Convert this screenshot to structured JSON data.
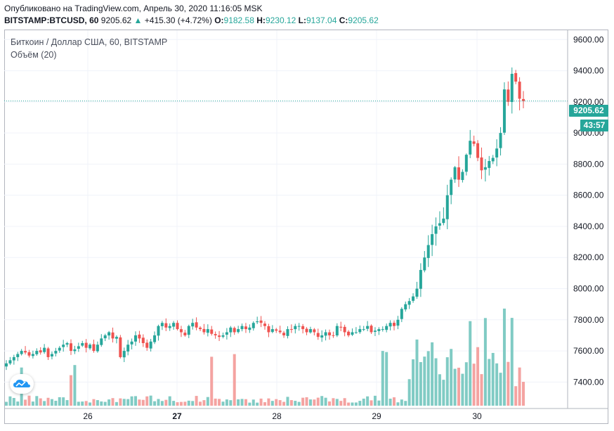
{
  "header": {
    "published": "Опубликовано на TradingView.com, Апрель 30, 2020 11:16:05 MSK",
    "symbol": "BITSTAMP:BTCUSD, 60",
    "last": "9205.62",
    "change": "+415.30 (+4.72%)",
    "o_label": "O:",
    "o_value": "9182.58",
    "h_label": "H:",
    "h_value": "9230.12",
    "l_label": "L:",
    "l_value": "9137.04",
    "c_label": "C:",
    "c_value": "9205.62"
  },
  "legend": {
    "main": "Биткоин / Доллар США, 60, BITSTAMP",
    "volume": "Объём (20)"
  },
  "price_tag": {
    "value": "9205.62",
    "countdown": "43:57"
  },
  "colors": {
    "up": "#26a69a",
    "down": "#ef5350",
    "vol_up": "#80cbc4",
    "vol_down": "#f4a3a1",
    "grid": "#f0f3fa",
    "accent": "#2196f3"
  },
  "icons": {
    "logo": "tradingview-cloud-icon"
  },
  "chart_data": {
    "type": "candlestick",
    "interval": "60",
    "x_ticks": [
      "26",
      "27",
      "28",
      "29",
      "30"
    ],
    "y_ticks": [
      "7400.00",
      "7600.00",
      "7800.00",
      "8000.00",
      "8200.00",
      "8400.00",
      "8600.00",
      "8800.00",
      "9000.00",
      "9200.00",
      "9400.00",
      "9600.00"
    ],
    "ylim": [
      7230,
      9660
    ],
    "last_price": 9205.62,
    "candles_close": [
      7520,
      7540,
      7560,
      7580,
      7600,
      7590,
      7570,
      7580,
      7600,
      7590,
      7620,
      7560,
      7580,
      7600,
      7620,
      7640,
      7650,
      7600,
      7610,
      7630,
      7650,
      7620,
      7640,
      7600,
      7640,
      7680,
      7700,
      7720,
      7680,
      7690,
      7560,
      7600,
      7640,
      7660,
      7700,
      7680,
      7650,
      7620,
      7660,
      7700,
      7760,
      7780,
      7750,
      7760,
      7780,
      7740,
      7720,
      7700,
      7760,
      7780,
      7750,
      7740,
      7720,
      7740,
      7710,
      7700,
      7690,
      7700,
      7720,
      7750,
      7720,
      7740,
      7760,
      7740,
      7750,
      7780,
      7790,
      7780,
      7760,
      7720,
      7740,
      7730,
      7720,
      7700,
      7740,
      7740,
      7760,
      7760,
      7740,
      7720,
      7740,
      7720,
      7690,
      7700,
      7720,
      7700,
      7700,
      7760,
      7750,
      7720,
      7700,
      7720,
      7720,
      7740,
      7740,
      7760,
      7720,
      7730,
      7740,
      7740,
      7760,
      7780,
      7760,
      7800,
      7870,
      7900,
      7920,
      7950,
      8000,
      8120,
      8200,
      8280,
      8350,
      8400,
      8420,
      8450,
      8600,
      8700,
      8780,
      8700,
      8750,
      8860,
      8950,
      8930,
      8840,
      8760,
      8780,
      8820,
      8840,
      8900,
      9000,
      9280,
      9200,
      9380,
      9330,
      9220,
      9205
    ],
    "volume_max": 9000,
    "volume_ylim": [
      0,
      9000
    ]
  }
}
